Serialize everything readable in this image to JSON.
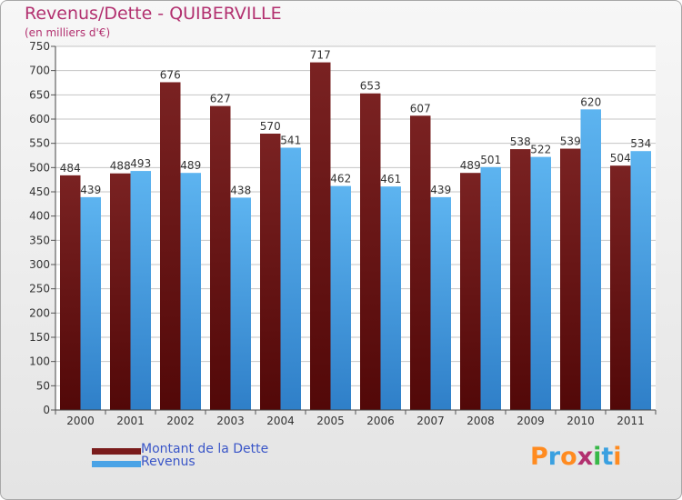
{
  "header": {
    "title": "Revenus/Dette - QUIBERVILLE",
    "subtitle": "(en milliers d'€)"
  },
  "legend": [
    {
      "label": "Montant de la Dette",
      "color": "#7a1c1c"
    },
    {
      "label": "Revenus",
      "color": "#4aa3e6"
    }
  ],
  "logo": {
    "text": "Proxiti",
    "colors": [
      "#ff8b20",
      "#3aa0e0",
      "#ff8b20",
      "#b2306f",
      "#38b848",
      "#3aa0e0",
      "#ff8b20"
    ]
  },
  "colors": {
    "title": "#b2306f",
    "dette_top": "#7a2222",
    "dette_bottom": "#520808",
    "revenus_top": "#5db4f0",
    "revenus_bottom": "#2f7fc8",
    "grid": "#c4c4c4"
  },
  "chart_data": {
    "type": "bar",
    "title": "Revenus/Dette - QUIBERVILLE",
    "subtitle": "(en milliers d'€)",
    "categories": [
      "2000",
      "2001",
      "2002",
      "2003",
      "2004",
      "2005",
      "2006",
      "2007",
      "2008",
      "2009",
      "2010",
      "2011"
    ],
    "series": [
      {
        "name": "Montant de la Dette",
        "values": [
          484,
          488,
          676,
          627,
          570,
          717,
          653,
          607,
          489,
          538,
          539,
          504
        ]
      },
      {
        "name": "Revenus",
        "values": [
          439,
          493,
          489,
          438,
          541,
          462,
          461,
          439,
          501,
          522,
          620,
          534
        ]
      }
    ],
    "yticks": [
      0,
      50,
      100,
      150,
      200,
      250,
      300,
      350,
      400,
      450,
      500,
      550,
      600,
      650,
      700,
      750
    ],
    "ylim": [
      0,
      750
    ],
    "grid": true,
    "legend_position": "bottom-left"
  }
}
